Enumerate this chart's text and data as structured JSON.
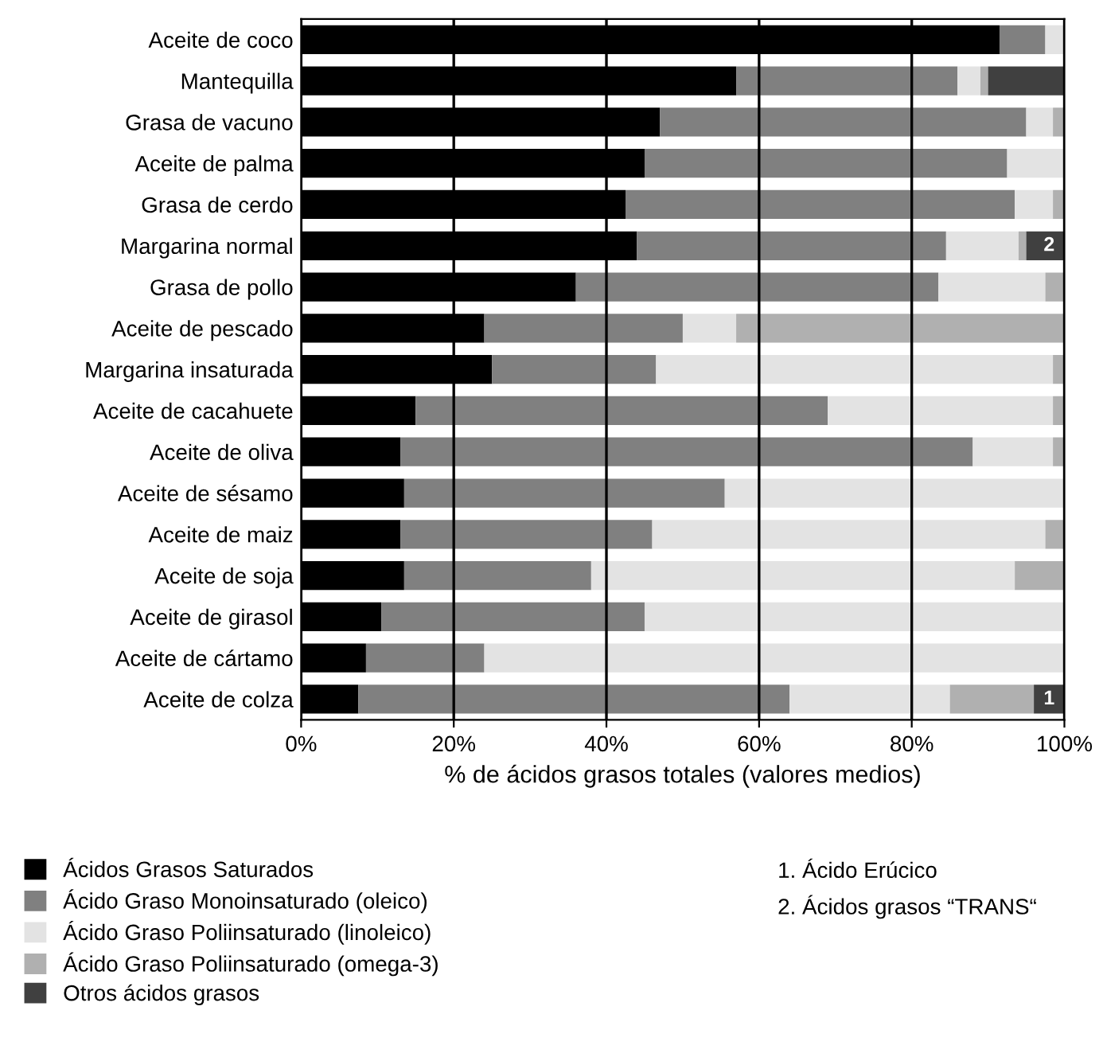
{
  "chart_data": {
    "type": "bar",
    "orientation": "horizontal",
    "stacked": true,
    "categories": [
      "Aceite de coco",
      "Mantequilla",
      "Grasa de vacuno",
      "Aceite de palma",
      "Grasa de cerdo",
      "Margarina normal",
      "Grasa de pollo",
      "Aceite de pescado",
      "Margarina insaturada",
      "Aceite de cacahuete",
      "Aceite de oliva",
      "Aceite de sésamo",
      "Aceite de maiz",
      "Aceite de soja",
      "Aceite de girasol",
      "Aceite de cártamo",
      "Aceite de colza"
    ],
    "series": [
      {
        "name": "Ácidos Grasos Saturados",
        "color": "#000000",
        "values": [
          91.5,
          57,
          47,
          45,
          42.5,
          44,
          36,
          24,
          25,
          15,
          13,
          13.5,
          13,
          13.5,
          10.5,
          8.5,
          7.5
        ]
      },
      {
        "name": "Ácido Graso Monoinsaturado (oleico)",
        "color": "#808080",
        "values": [
          6,
          29,
          48,
          47.5,
          51,
          40.5,
          47.5,
          26,
          21.5,
          54,
          75,
          42,
          33,
          24.5,
          34.5,
          15.5,
          56.5
        ]
      },
      {
        "name": "Ácido Graso Poliinsaturado (linoleico)",
        "color": "#e3e3e3",
        "values": [
          2.5,
          3,
          3.5,
          7.5,
          5,
          9.5,
          14,
          7,
          52,
          29.5,
          10.5,
          44.5,
          51.5,
          55.5,
          55,
          76,
          21
        ]
      },
      {
        "name": "Ácido Graso Poliinsaturado (omega-3)",
        "color": "#b0b0b0",
        "values": [
          null,
          1,
          1.5,
          null,
          1.5,
          1,
          2.5,
          43,
          1.5,
          1.5,
          1.5,
          null,
          2.5,
          6.5,
          null,
          null,
          11
        ]
      },
      {
        "name": "Otros ácidos grasos",
        "color": "#404040",
        "values": [
          null,
          10,
          null,
          null,
          null,
          5,
          null,
          null,
          null,
          null,
          null,
          null,
          null,
          null,
          null,
          null,
          4
        ]
      }
    ],
    "xlim": [
      0,
      100
    ],
    "xticks": [
      {
        "value": 0,
        "label": "0%"
      },
      {
        "value": 20,
        "label": "20%"
      },
      {
        "value": 40,
        "label": "40%"
      },
      {
        "value": 60,
        "label": "60%"
      },
      {
        "value": 80,
        "label": "80%"
      },
      {
        "value": 100,
        "label": "100%"
      }
    ],
    "xlabel": "% de ácidos grasos totales (valores medios)",
    "grid": "x",
    "legend": "bottom left",
    "annotations": [
      {
        "text": "2",
        "x": 98,
        "y": "Margarina normal"
      },
      {
        "text": "1",
        "x": 98,
        "y": "Aceite de colza"
      },
      "1. Ácido Erúcico",
      "2. Ácidos grasos “TRANS“"
    ]
  }
}
